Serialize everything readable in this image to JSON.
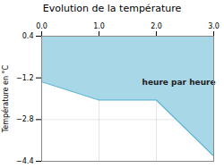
{
  "chart_data": {
    "type": "area",
    "title": "Evolution de la température",
    "y_label": "Température en °C",
    "x": [
      0,
      1,
      2,
      3
    ],
    "values": [
      -1.35,
      -2.05,
      -2.05,
      -4.2
    ],
    "colors": [
      "#a8d8e8",
      "#5ab4d4"
    ],
    "xlim": [
      0,
      3
    ],
    "xticks": [
      0,
      1,
      2,
      3
    ],
    "ylim": [
      -4.4,
      0.4
    ],
    "yticks": [
      0.4,
      -1.2,
      -2.8,
      -4.4
    ],
    "grid": true,
    "annotations": [
      {
        "text": "heure par heure",
        "x": 1.75,
        "y": -1.25
      }
    ]
  }
}
